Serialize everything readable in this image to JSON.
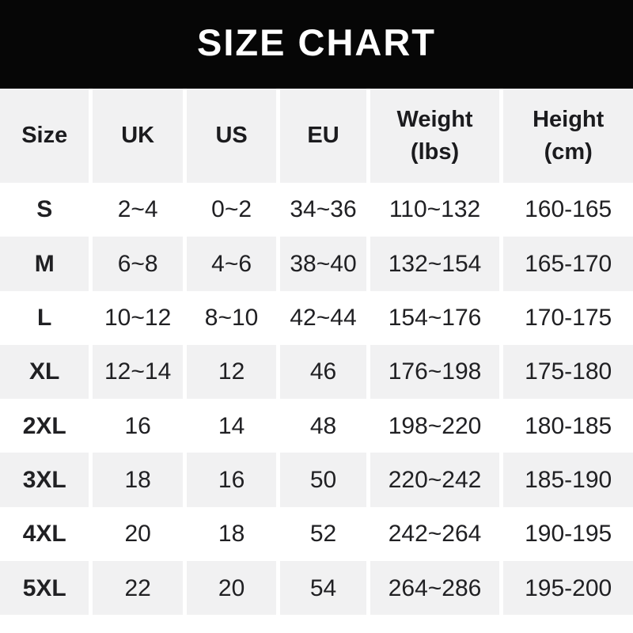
{
  "colors": {
    "banner_bg": "#060606",
    "banner_text": "#ffffff",
    "row_shade": "#f1f1f2",
    "row_plain": "#ffffff",
    "text": "#202023"
  },
  "chart_data": {
    "type": "table",
    "title": "SIZE CHART",
    "legend_position": "none",
    "columns": [
      {
        "key": "size",
        "label": "Size",
        "sublabel": ""
      },
      {
        "key": "uk",
        "label": "UK",
        "sublabel": ""
      },
      {
        "key": "us",
        "label": "US",
        "sublabel": ""
      },
      {
        "key": "eu",
        "label": "EU",
        "sublabel": ""
      },
      {
        "key": "weight",
        "label": "Weight",
        "sublabel": "(lbs)"
      },
      {
        "key": "height",
        "label": "Height",
        "sublabel": "(cm)"
      }
    ],
    "rows": [
      [
        "S",
        "2~4",
        "0~2",
        "34~36",
        "110~132",
        "160-165"
      ],
      [
        "M",
        "6~8",
        "4~6",
        "38~40",
        "132~154",
        "165-170"
      ],
      [
        "L",
        "10~12",
        "8~10",
        "42~44",
        "154~176",
        "170-175"
      ],
      [
        "XL",
        "12~14",
        "12",
        "46",
        "176~198",
        "175-180"
      ],
      [
        "2XL",
        "16",
        "14",
        "48",
        "198~220",
        "180-185"
      ],
      [
        "3XL",
        "18",
        "16",
        "50",
        "220~242",
        "185-190"
      ],
      [
        "4XL",
        "20",
        "18",
        "52",
        "242~264",
        "190-195"
      ],
      [
        "5XL",
        "22",
        "20",
        "54",
        "264~286",
        "195-200"
      ]
    ]
  }
}
